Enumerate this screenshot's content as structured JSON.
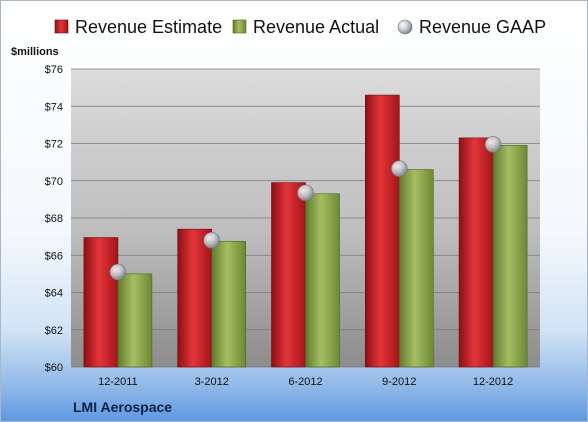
{
  "chart_data": {
    "type": "bar",
    "title": "",
    "ylabel": "$millions",
    "xlabel": "",
    "categories": [
      "12-2011",
      "3-2012",
      "6-2012",
      "9-2012",
      "12-2012"
    ],
    "series": [
      {
        "name": "Revenue Estimate",
        "kind": "bar",
        "color": "#d21f26",
        "values": [
          66.95,
          67.4,
          69.9,
          74.6,
          72.3
        ]
      },
      {
        "name": "Revenue Actual",
        "kind": "bar",
        "color": "#8aa34a",
        "values": [
          65.0,
          66.75,
          69.3,
          70.6,
          71.9
        ]
      },
      {
        "name": "Revenue GAAP",
        "kind": "marker",
        "color": "#c9ccd2",
        "values": [
          65.1,
          66.8,
          69.35,
          70.65,
          71.95
        ]
      }
    ],
    "ylim": [
      60,
      76
    ],
    "yticks": [
      60,
      62,
      64,
      66,
      68,
      70,
      72,
      74,
      76
    ],
    "ytick_prefix": "$",
    "grid": true,
    "legend_position": "top"
  },
  "footer": {
    "company": "LMI Aerospace"
  }
}
